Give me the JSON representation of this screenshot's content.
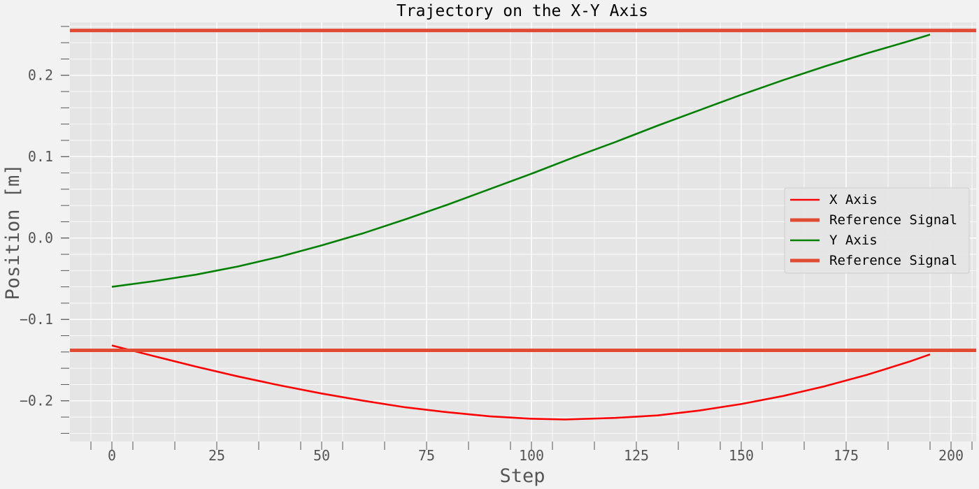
{
  "chart_data": {
    "type": "line",
    "title": "Trajectory on the X-Y Axis",
    "xlabel": "Step",
    "ylabel": "Position [m]",
    "xlim": [
      -10,
      206
    ],
    "ylim": [
      -0.25,
      0.265
    ],
    "xticks": [
      0,
      25,
      50,
      75,
      100,
      125,
      150,
      175,
      200
    ],
    "xtick_labels": [
      "0",
      "25",
      "50",
      "75",
      "100",
      "125",
      "150",
      "175",
      "200"
    ],
    "yticks": [
      -0.2,
      -0.1,
      0.0,
      0.1,
      0.2
    ],
    "ytick_labels": [
      "−0.2",
      "−0.1",
      "0.0",
      "0.1",
      "0.2"
    ],
    "grid": true,
    "legend_position": "center-right",
    "series": [
      {
        "name": "X Axis",
        "color": "#ff0000",
        "style": "line",
        "x": [
          0,
          10,
          20,
          30,
          40,
          50,
          60,
          70,
          80,
          90,
          100,
          108,
          120,
          130,
          140,
          150,
          160,
          170,
          180,
          190,
          195
        ],
        "y": [
          -0.132,
          -0.145,
          -0.158,
          -0.17,
          -0.181,
          -0.191,
          -0.2,
          -0.208,
          -0.214,
          -0.219,
          -0.222,
          -0.223,
          -0.221,
          -0.218,
          -0.212,
          -0.204,
          -0.194,
          -0.182,
          -0.168,
          -0.152,
          -0.143
        ]
      },
      {
        "name": "Reference Signal",
        "color": "#e24a33",
        "style": "hline",
        "y": -0.138
      },
      {
        "name": "Y Axis",
        "color": "#008000",
        "style": "line",
        "x": [
          0,
          10,
          20,
          30,
          40,
          50,
          60,
          70,
          80,
          90,
          100,
          110,
          120,
          130,
          140,
          150,
          160,
          170,
          180,
          190,
          195
        ],
        "y": [
          -0.06,
          -0.053,
          -0.045,
          -0.035,
          -0.023,
          -0.009,
          0.006,
          0.023,
          0.041,
          0.06,
          0.079,
          0.099,
          0.118,
          0.138,
          0.157,
          0.176,
          0.194,
          0.211,
          0.227,
          0.242,
          0.25
        ]
      },
      {
        "name": "Reference Signal",
        "color": "#e24a33",
        "style": "hline",
        "y": 0.255
      }
    ]
  }
}
